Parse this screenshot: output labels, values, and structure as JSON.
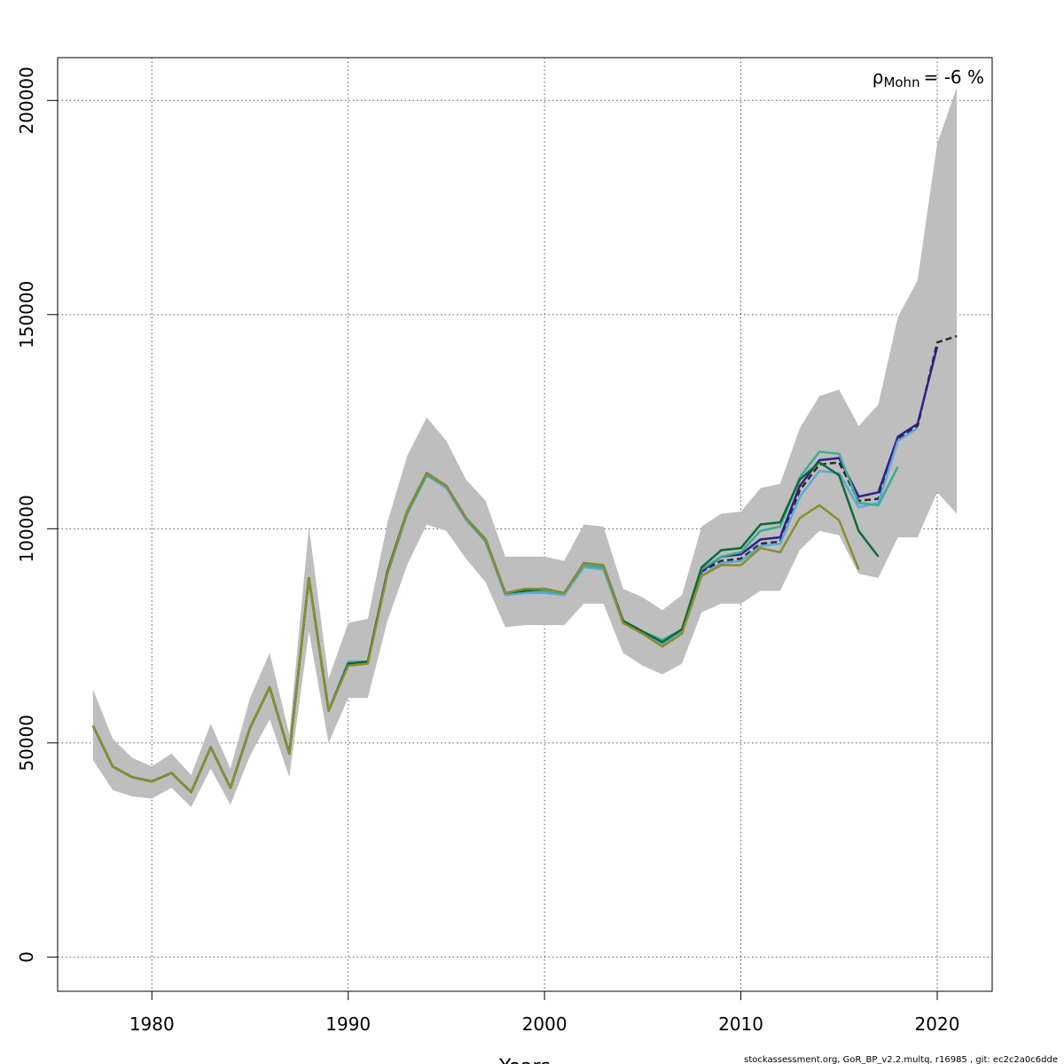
{
  "chart_data": {
    "type": "line",
    "xlabel": "Years",
    "ylabel": "",
    "xlim": [
      1975.2,
      2022.8
    ],
    "ylim": [
      -8000,
      210000
    ],
    "x_ticks": [
      1980,
      1990,
      2000,
      2010,
      2020
    ],
    "y_ticks": [
      0,
      50000,
      100000,
      150000,
      200000
    ],
    "grid": true,
    "annotation": {
      "symbol": "ρ",
      "subscript": "Mohn",
      "value_text": "= -6 %"
    },
    "colors": {
      "band": "#bebebe",
      "base": "#000000",
      "grid": "#555555"
    },
    "confidence_band": {
      "x": [
        1977,
        1978,
        1979,
        1980,
        1981,
        1982,
        1983,
        1984,
        1985,
        1986,
        1987,
        1988,
        1989,
        1990,
        1991,
        1992,
        1993,
        1994,
        1995,
        1996,
        1997,
        1998,
        1999,
        2000,
        2001,
        2002,
        2003,
        2004,
        2005,
        2006,
        2007,
        2008,
        2009,
        2010,
        2011,
        2012,
        2013,
        2014,
        2015,
        2016,
        2017,
        2018,
        2019,
        2020,
        2021
      ],
      "lower": [
        46000,
        39000,
        37500,
        37000,
        39500,
        35000,
        44000,
        35500,
        47000,
        55500,
        42000,
        76000,
        50000,
        60500,
        60500,
        78500,
        91500,
        101000,
        99500,
        93000,
        87500,
        77000,
        77500,
        77500,
        77500,
        82500,
        82500,
        71000,
        68000,
        66000,
        68500,
        80500,
        82500,
        82500,
        85500,
        85500,
        95000,
        99500,
        98500,
        89500,
        88500,
        98000,
        98000,
        108500,
        103500
      ],
      "upper": [
        62500,
        51000,
        46500,
        44500,
        47500,
        42500,
        54500,
        44000,
        60500,
        71000,
        52000,
        100500,
        65000,
        78000,
        79000,
        101500,
        117000,
        126000,
        120500,
        111500,
        106500,
        93500,
        93500,
        93500,
        92500,
        101000,
        100500,
        86000,
        84000,
        81000,
        84500,
        100500,
        103500,
        104000,
        109500,
        110500,
        123500,
        131000,
        132500,
        124000,
        129000,
        149500,
        158000,
        190000,
        203000
      ]
    },
    "series": [
      {
        "color": "#2b2b2b",
        "dashed": true,
        "x": [
          1977,
          1978,
          1979,
          1980,
          1981,
          1982,
          1983,
          1984,
          1985,
          1986,
          1987,
          1988,
          1989,
          1990,
          1991,
          1992,
          1993,
          1994,
          1995,
          1996,
          1997,
          1998,
          1999,
          2000,
          2001,
          2002,
          2003,
          2004,
          2005,
          2006,
          2007,
          2008,
          2009,
          2010,
          2011,
          2012,
          2013,
          2014,
          2015,
          2016,
          2017,
          2018,
          2019,
          2020,
          2021
        ],
        "values": [
          54000,
          44500,
          42000,
          41000,
          43000,
          38500,
          49000,
          39500,
          53500,
          63000,
          47500,
          88500,
          57500,
          68500,
          69000,
          90000,
          104000,
          113000,
          110000,
          102500,
          97500,
          85000,
          85500,
          85500,
          85000,
          91500,
          91000,
          78500,
          76000,
          73500,
          76500,
          90000,
          92500,
          93000,
          96500,
          97000,
          109000,
          115000,
          115500,
          106500,
          107000,
          121000,
          124000,
          143500,
          145000
        ]
      },
      {
        "color": "#2e1f8c",
        "dashed": false,
        "x": [
          1977,
          1978,
          1979,
          1980,
          1981,
          1982,
          1983,
          1984,
          1985,
          1986,
          1987,
          1988,
          1989,
          1990,
          1991,
          1992,
          1993,
          1994,
          1995,
          1996,
          1997,
          1998,
          1999,
          2000,
          2001,
          2002,
          2003,
          2004,
          2005,
          2006,
          2007,
          2008,
          2009,
          2010,
          2011,
          2012,
          2013,
          2014,
          2015,
          2016,
          2017,
          2018,
          2019,
          2020
        ],
        "values": [
          54000,
          44500,
          42000,
          41000,
          43000,
          38500,
          49000,
          39500,
          53500,
          63000,
          47500,
          88500,
          57500,
          68500,
          69000,
          90000,
          104000,
          113000,
          110000,
          102500,
          97500,
          85000,
          85500,
          85500,
          85000,
          91500,
          91000,
          78500,
          76000,
          73500,
          76500,
          90000,
          93500,
          94000,
          97500,
          98000,
          110000,
          116000,
          116500,
          107500,
          108500,
          121500,
          124500,
          142500
        ]
      },
      {
        "color": "#5ea8d8",
        "dashed": false,
        "x": [
          1977,
          1978,
          1979,
          1980,
          1981,
          1982,
          1983,
          1984,
          1985,
          1986,
          1987,
          1988,
          1989,
          1990,
          1991,
          1992,
          1993,
          1994,
          1995,
          1996,
          1997,
          1998,
          1999,
          2000,
          2001,
          2002,
          2003,
          2004,
          2005,
          2006,
          2007,
          2008,
          2009,
          2010,
          2011,
          2012,
          2013,
          2014,
          2015,
          2016,
          2017,
          2018,
          2019
        ],
        "values": [
          54000,
          44500,
          42000,
          41000,
          43000,
          38500,
          49000,
          39500,
          53500,
          63000,
          47500,
          88500,
          57500,
          69000,
          69000,
          89500,
          103500,
          112500,
          109500,
          102000,
          97000,
          84500,
          85000,
          85000,
          84500,
          91000,
          90500,
          78000,
          75500,
          73000,
          76000,
          89000,
          92000,
          92500,
          96000,
          96500,
          107500,
          113500,
          113000,
          105000,
          106000,
          120500,
          123500
        ]
      },
      {
        "color": "#3bab96",
        "dashed": false,
        "x": [
          1977,
          1978,
          1979,
          1980,
          1981,
          1982,
          1983,
          1984,
          1985,
          1986,
          1987,
          1988,
          1989,
          1990,
          1991,
          1992,
          1993,
          1994,
          1995,
          1996,
          1997,
          1998,
          1999,
          2000,
          2001,
          2002,
          2003,
          2004,
          2005,
          2006,
          2007,
          2008,
          2009,
          2010,
          2011,
          2012,
          2013,
          2014,
          2015,
          2016,
          2017,
          2018
        ],
        "values": [
          54000,
          44500,
          42000,
          41000,
          43000,
          38500,
          49000,
          39500,
          53500,
          63000,
          47500,
          88500,
          57500,
          68500,
          69000,
          89500,
          103500,
          112500,
          110000,
          102500,
          97000,
          85000,
          85500,
          85500,
          85000,
          91500,
          91000,
          78500,
          76000,
          74000,
          76500,
          90500,
          93500,
          94500,
          99500,
          100500,
          112000,
          118000,
          117500,
          106000,
          105500,
          114500
        ]
      },
      {
        "color": "#0b6b32",
        "dashed": false,
        "x": [
          1977,
          1978,
          1979,
          1980,
          1981,
          1982,
          1983,
          1984,
          1985,
          1986,
          1987,
          1988,
          1989,
          1990,
          1991,
          1992,
          1993,
          1994,
          1995,
          1996,
          1997,
          1998,
          1999,
          2000,
          2001,
          2002,
          2003,
          2004,
          2005,
          2006,
          2007,
          2008,
          2009,
          2010,
          2011,
          2012,
          2013,
          2014,
          2015,
          2016,
          2017
        ],
        "values": [
          54000,
          44500,
          42000,
          41000,
          43000,
          38500,
          49000,
          39500,
          53500,
          63000,
          47500,
          88500,
          57500,
          68500,
          69000,
          90000,
          104000,
          113000,
          110000,
          102500,
          97500,
          85000,
          85500,
          86000,
          85000,
          92000,
          91500,
          78500,
          76000,
          73500,
          76500,
          91000,
          95000,
          95500,
          101000,
          101500,
          111500,
          115500,
          112500,
          99500,
          93500
        ]
      },
      {
        "color": "#8c8c2e",
        "dashed": false,
        "x": [
          1977,
          1978,
          1979,
          1980,
          1981,
          1982,
          1983,
          1984,
          1985,
          1986,
          1987,
          1988,
          1989,
          1990,
          1991,
          1992,
          1993,
          1994,
          1995,
          1996,
          1997,
          1998,
          1999,
          2000,
          2001,
          2002,
          2003,
          2004,
          2005,
          2006,
          2007,
          2008,
          2009,
          2010,
          2011,
          2012,
          2013,
          2014,
          2015,
          2016
        ],
        "values": [
          54000,
          44500,
          42000,
          41000,
          43000,
          38500,
          49000,
          39500,
          53500,
          63000,
          47500,
          88500,
          57500,
          68000,
          68500,
          89500,
          104000,
          113000,
          110000,
          102500,
          97500,
          85000,
          86000,
          86000,
          85000,
          92000,
          91500,
          78000,
          75500,
          72500,
          75500,
          89000,
          91500,
          91500,
          95500,
          94500,
          102500,
          105500,
          102000,
          90500
        ]
      }
    ]
  },
  "footer_text": "stockassessment.org, GoR_BP_v2.2.multq, r16985 , git: ec2c2a0c6dde"
}
